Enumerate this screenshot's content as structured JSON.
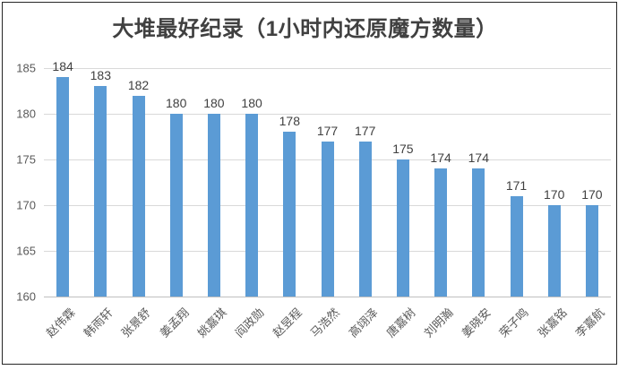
{
  "chart_data": {
    "type": "bar",
    "title": "大堆最好纪录（1小时内还原魔方数量）",
    "categories": [
      "赵伟霖",
      "韩雨轩",
      "张景舒",
      "姜孟翔",
      "姚嘉琪",
      "阎政勋",
      "赵昱程",
      "马浩然",
      "高翊泽",
      "唐嘉树",
      "刘明瀚",
      "姜晓安",
      "荣子鸣",
      "张嘉铭",
      "李嘉航"
    ],
    "values": [
      184,
      183,
      182,
      180,
      180,
      180,
      178,
      177,
      177,
      175,
      174,
      174,
      171,
      170,
      170
    ],
    "xlabel": "",
    "ylabel": "",
    "ylim": [
      160,
      185
    ],
    "yticks": [
      160,
      165,
      170,
      175,
      180,
      185
    ],
    "grid": true,
    "legend": false,
    "data_labels": true
  },
  "colors": {
    "bar": "#5B9BD5",
    "gridline": "#D9D9D9",
    "axis_line": "#BFBFBF",
    "title_text": "#404040",
    "value_label_text": "#404040",
    "tick_text": "#595959",
    "frame_border": "#262626"
  }
}
